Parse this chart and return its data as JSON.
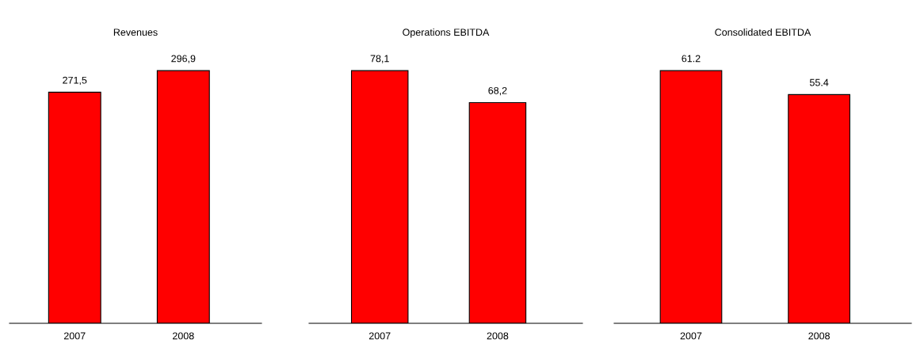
{
  "chart_data": [
    {
      "type": "bar",
      "title": "Revenues",
      "categories": [
        "2007",
        "2008"
      ],
      "values": [
        271.5,
        296.9
      ],
      "value_labels": [
        "271,5",
        "296,9"
      ],
      "color": "#ff0000",
      "tick_labels": "x",
      "grid": false,
      "legend": false
    },
    {
      "type": "bar",
      "title": "Operations EBITDA",
      "categories": [
        "2007",
        "2008"
      ],
      "values": [
        78.1,
        68.2
      ],
      "value_labels": [
        "78,1",
        "68,2"
      ],
      "color": "#ff0000",
      "tick_labels": "x",
      "grid": false,
      "legend": false
    },
    {
      "type": "bar",
      "title": "Consolidated EBITDA",
      "categories": [
        "2007",
        "2008"
      ],
      "values": [
        61.2,
        55.4
      ],
      "value_labels": [
        "61.2",
        "55.4"
      ],
      "color": "#ff0000",
      "tick_labels": "x",
      "grid": false,
      "legend": false
    }
  ]
}
